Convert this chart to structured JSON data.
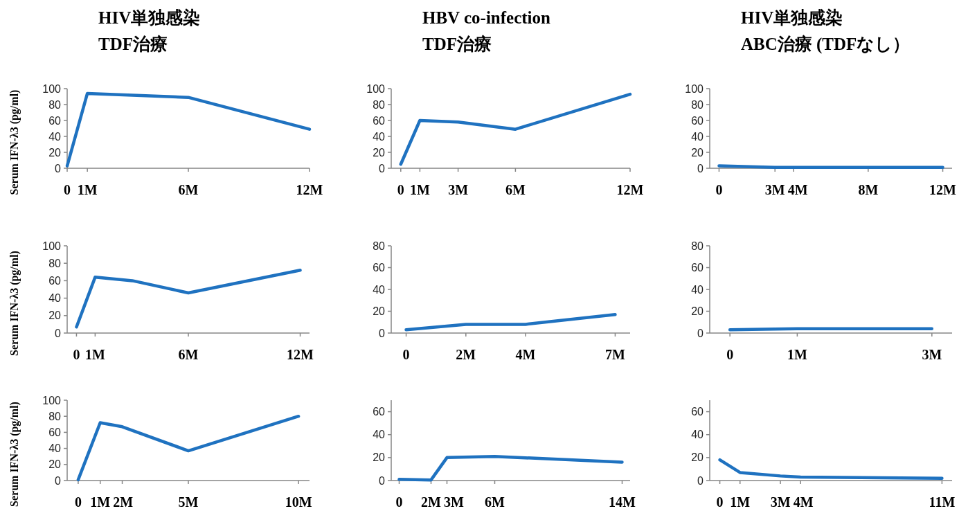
{
  "chart_data": [
    {
      "type": "line",
      "title": "HIV単独感染\nTDF治療",
      "ylabel": "Serum IFN-λ3 (pg/ml)",
      "x": [
        0,
        1,
        6,
        12
      ],
      "xlim": [
        0,
        12
      ],
      "xticks": [
        {
          "value": 0,
          "label": "0"
        },
        {
          "value": 1,
          "label": "1M"
        },
        {
          "value": 6,
          "label": "6M"
        },
        {
          "value": 12,
          "label": "12M"
        }
      ],
      "ylim": [
        0,
        100
      ],
      "yticks": [
        0,
        20,
        40,
        60,
        80,
        100
      ],
      "series": [
        {
          "color": "#1f72c0",
          "values": [
            3,
            94,
            89,
            49
          ]
        }
      ]
    },
    {
      "type": "line",
      "title": "HBV co-infection\nTDF治療",
      "x": [
        0,
        1,
        3,
        6,
        12
      ],
      "xlim": [
        -0.5,
        12
      ],
      "xticks": [
        {
          "value": 0,
          "label": "0"
        },
        {
          "value": 1,
          "label": "1M"
        },
        {
          "value": 3,
          "label": "3M"
        },
        {
          "value": 6,
          "label": "6M"
        },
        {
          "value": 12,
          "label": "12M"
        }
      ],
      "ylim": [
        0,
        100
      ],
      "yticks": [
        0,
        20,
        40,
        60,
        80,
        100
      ],
      "series": [
        {
          "color": "#1f72c0",
          "values": [
            5,
            60,
            58,
            49,
            93
          ]
        }
      ]
    },
    {
      "type": "line",
      "title": "HIV単独感染\nABC治療 (TDFなし）",
      "x": [
        0,
        3,
        4,
        8,
        12
      ],
      "xlim": [
        -0.5,
        12.5
      ],
      "xticks": [
        {
          "value": 0,
          "label": "0"
        },
        {
          "value": 3,
          "label": "3M"
        },
        {
          "value": 4,
          "label": "4M"
        },
        {
          "value": 8,
          "label": "8M"
        },
        {
          "value": 12,
          "label": "12M"
        }
      ],
      "ylim": [
        0,
        100
      ],
      "yticks": [
        0,
        20,
        40,
        60,
        80,
        100
      ],
      "series": [
        {
          "color": "#1f72c0",
          "values": [
            3,
            1,
            1,
            1,
            1
          ]
        }
      ]
    },
    {
      "type": "line",
      "ylabel": "Serum IFN-λ3 (pg/ml)",
      "x": [
        0,
        1,
        3,
        6,
        12
      ],
      "xlim": [
        -0.5,
        12.5
      ],
      "xticks": [
        {
          "value": 0,
          "label": "0"
        },
        {
          "value": 1,
          "label": "1M"
        },
        {
          "value": 6,
          "label": "6M"
        },
        {
          "value": 12,
          "label": "12M"
        }
      ],
      "ylim": [
        0,
        100
      ],
      "yticks": [
        0,
        20,
        40,
        60,
        80,
        100
      ],
      "series": [
        {
          "color": "#1f72c0",
          "values": [
            7,
            64,
            60,
            46,
            72
          ]
        }
      ]
    },
    {
      "type": "line",
      "x": [
        0,
        2,
        4,
        7
      ],
      "xlim": [
        -0.5,
        7.5
      ],
      "xticks": [
        {
          "value": 0,
          "label": "0"
        },
        {
          "value": 2,
          "label": "2M"
        },
        {
          "value": 4,
          "label": "4M"
        },
        {
          "value": 7,
          "label": "7M"
        }
      ],
      "ylim": [
        0,
        80
      ],
      "yticks": [
        0,
        20,
        40,
        60,
        80
      ],
      "series": [
        {
          "color": "#1f72c0",
          "values": [
            3,
            8,
            8,
            17
          ]
        }
      ]
    },
    {
      "type": "line",
      "x": [
        0,
        1,
        3
      ],
      "xlim": [
        -0.3,
        3.3
      ],
      "xticks": [
        {
          "value": 0,
          "label": "0"
        },
        {
          "value": 1,
          "label": "1M"
        },
        {
          "value": 3,
          "label": "3M"
        }
      ],
      "ylim": [
        0,
        80
      ],
      "yticks": [
        0,
        20,
        40,
        60,
        80
      ],
      "series": [
        {
          "color": "#1f72c0",
          "values": [
            3,
            4,
            4
          ]
        }
      ]
    },
    {
      "type": "line",
      "ylabel": "Serum IFN-λ3 (pg/ml)",
      "x": [
        0,
        1,
        2,
        5,
        10
      ],
      "xlim": [
        -0.5,
        10.5
      ],
      "xticks": [
        {
          "value": 0,
          "label": "0"
        },
        {
          "value": 1,
          "label": "1M"
        },
        {
          "value": 2,
          "label": "2M"
        },
        {
          "value": 5,
          "label": "5M"
        },
        {
          "value": 10,
          "label": "10M"
        }
      ],
      "ylim": [
        0,
        100
      ],
      "yticks": [
        0,
        20,
        40,
        60,
        80,
        100
      ],
      "series": [
        {
          "color": "#1f72c0",
          "values": [
            1,
            72,
            67,
            37,
            80
          ]
        }
      ]
    },
    {
      "type": "line",
      "x": [
        0,
        2,
        3,
        6,
        14
      ],
      "xlim": [
        -0.5,
        14.5
      ],
      "xticks": [
        {
          "value": 0,
          "label": "0"
        },
        {
          "value": 2,
          "label": "2M"
        },
        {
          "value": 3,
          "label": "3M"
        },
        {
          "value": 6,
          "label": "6M"
        },
        {
          "value": 14,
          "label": "14M"
        }
      ],
      "ylim": [
        0,
        70
      ],
      "yticks": [
        0,
        20,
        40,
        60
      ],
      "series": [
        {
          "color": "#1f72c0",
          "values": [
            1,
            0.5,
            20,
            21,
            16
          ]
        }
      ]
    },
    {
      "type": "line",
      "x": [
        0,
        1,
        3,
        4,
        11
      ],
      "xlim": [
        -0.5,
        11.5
      ],
      "xticks": [
        {
          "value": 0,
          "label": "0"
        },
        {
          "value": 1,
          "label": "1M"
        },
        {
          "value": 3,
          "label": "3M"
        },
        {
          "value": 4,
          "label": "4M"
        },
        {
          "value": 11,
          "label": "11M"
        }
      ],
      "ylim": [
        0,
        70
      ],
      "yticks": [
        0,
        20,
        40,
        60
      ],
      "series": [
        {
          "color": "#1f72c0",
          "values": [
            18,
            7,
            4,
            3,
            2
          ]
        }
      ]
    }
  ]
}
